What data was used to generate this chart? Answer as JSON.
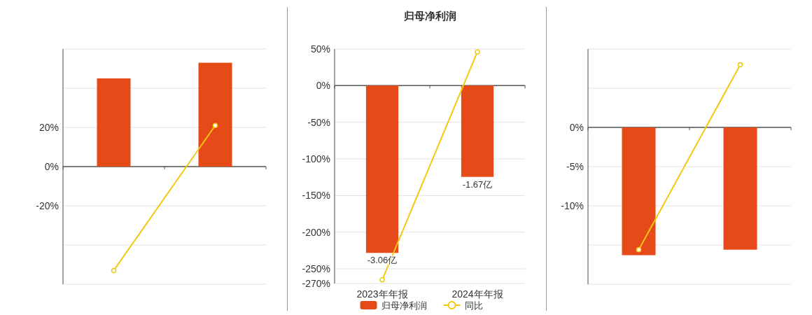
{
  "chart_data": [
    {
      "type": "bar",
      "categories": [
        null,
        null
      ],
      "ylim": [
        -60,
        60
      ],
      "yticks": [
        {
          "value": 60,
          "label": null
        },
        {
          "value": 40,
          "label": null
        },
        {
          "value": 20,
          "label": "20%"
        },
        {
          "value": 0,
          "label": "0%"
        },
        {
          "value": -20,
          "label": "-20%"
        },
        {
          "value": -40,
          "label": null
        },
        {
          "value": -60,
          "label": null
        }
      ],
      "grid": "y",
      "marker": "circle",
      "series": [
        {
          "color": "#e64a19",
          "values": [
            45,
            53
          ]
        },
        {
          "type": "line",
          "color": "#f2c811",
          "values": [
            -53,
            21
          ]
        }
      ]
    },
    {
      "type": "bar",
      "title": "归母净利润",
      "categories": [
        "2023年年报",
        "2024年年报"
      ],
      "ylim": [
        -270,
        50
      ],
      "yticks": [
        {
          "value": 50,
          "label": "50%"
        },
        {
          "value": 0,
          "label": "0%"
        },
        {
          "value": -50,
          "label": "-50%"
        },
        {
          "value": -100,
          "label": "-100%"
        },
        {
          "value": -150,
          "label": "-150%"
        },
        {
          "value": -200,
          "label": "-200%"
        },
        {
          "value": -250,
          "label": "-250%"
        },
        {
          "value": -270,
          "label": "-270%"
        }
      ],
      "y2lim": [
        -3.62,
        0.67
      ],
      "grid": "y",
      "marker": "circle",
      "legend": "bottom",
      "series": [
        {
          "name": "归母净利润",
          "color": "#e64a19",
          "axis": "y2",
          "values": [
            -3.06,
            -1.67
          ],
          "value_labels": [
            "-3.06亿",
            "-1.67亿"
          ]
        },
        {
          "type": "line",
          "name": "同比",
          "color": "#f2c811",
          "values": [
            -265,
            46
          ]
        }
      ]
    },
    {
      "type": "bar",
      "categories": [
        null,
        null
      ],
      "ylim": [
        -20,
        10
      ],
      "yticks": [
        {
          "value": 10,
          "label": null
        },
        {
          "value": 5,
          "label": null
        },
        {
          "value": 0,
          "label": "0%"
        },
        {
          "value": -5,
          "label": "-5%"
        },
        {
          "value": -10,
          "label": "-10%"
        },
        {
          "value": -15,
          "label": null
        },
        {
          "value": -20,
          "label": null
        }
      ],
      "grid": "y",
      "marker": "circle",
      "series": [
        {
          "color": "#e64a19",
          "values": [
            -16.3,
            -15.6
          ]
        },
        {
          "type": "line",
          "color": "#f2c811",
          "values": [
            -15.6,
            8
          ]
        }
      ]
    }
  ]
}
